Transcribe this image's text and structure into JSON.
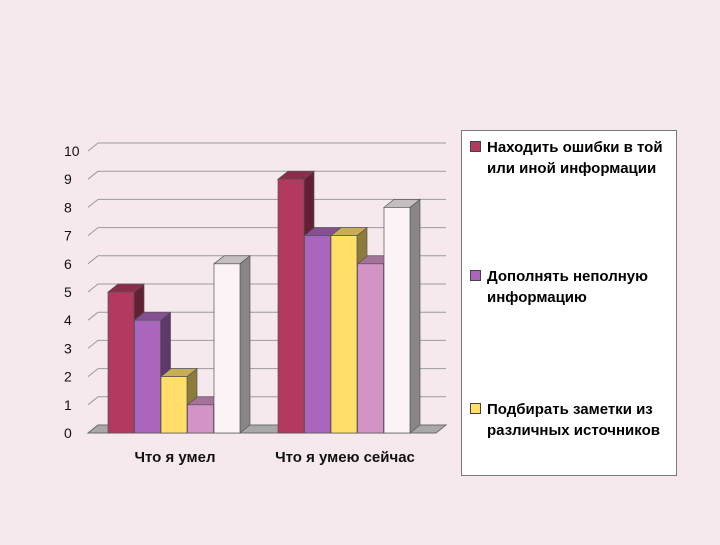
{
  "chart_data": {
    "type": "bar",
    "categories": [
      "Что я умел",
      "Что я умею сейчас"
    ],
    "series": [
      {
        "name": "Находить ошибки в той или иной информации",
        "values": [
          5,
          9
        ]
      },
      {
        "name": "Дополнять неполную информацию",
        "values": [
          4,
          7
        ]
      },
      {
        "name": "Подбирать заметки из различных источников",
        "values": [
          2,
          7
        ]
      },
      {
        "values": [
          1,
          6
        ]
      },
      {
        "values": [
          6,
          8
        ]
      }
    ],
    "ylim": [
      0,
      10
    ],
    "yticks": [
      "0",
      "1",
      "2",
      "3",
      "4",
      "5",
      "6",
      "7",
      "8",
      "9",
      "10"
    ],
    "grid": true,
    "legend_position": "right",
    "colors": [
      "#b4395f",
      "#aa66bd",
      "#ffdf6a",
      "#d493c6",
      "#fbf3f6"
    ]
  }
}
